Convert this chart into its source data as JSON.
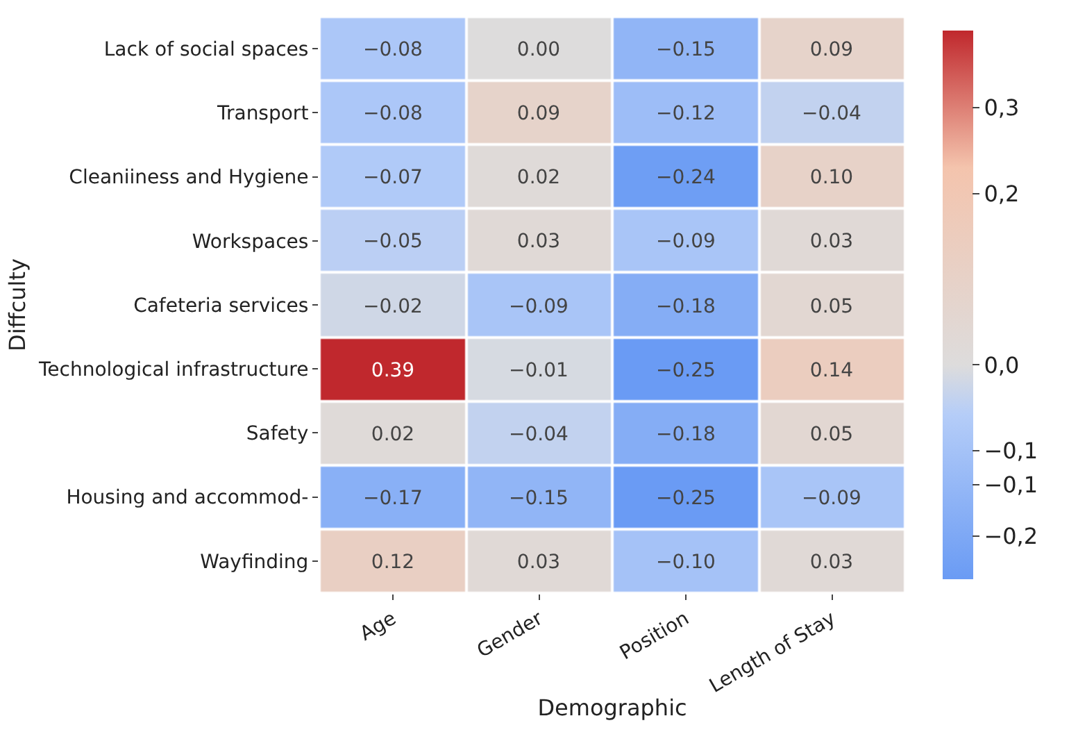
{
  "chart_data": {
    "type": "heatmap",
    "xlabel": "Demographic",
    "ylabel": "Diffculty",
    "categories": [
      "Age",
      "Gender",
      "Position",
      "Length of Stay"
    ],
    "y_categories": [
      "Lack of social spaces",
      "Transport",
      "Cleaniiness and Hygiene",
      "Workspaces",
      "Cafeteria services",
      "Technological infrastructure",
      "Safety",
      "Housing and accommod-",
      "Wayfinding"
    ],
    "cells": [
      [
        -0.08,
        0.0,
        -0.15,
        0.09
      ],
      [
        -0.08,
        0.09,
        -0.12,
        -0.04
      ],
      [
        -0.07,
        0.02,
        -0.24,
        0.1
      ],
      [
        -0.05,
        0.03,
        -0.09,
        0.03
      ],
      [
        -0.02,
        -0.09,
        -0.18,
        0.05
      ],
      [
        0.39,
        -0.01,
        -0.25,
        0.14
      ],
      [
        0.02,
        -0.04,
        -0.18,
        0.05
      ],
      [
        -0.17,
        -0.15,
        -0.25,
        -0.09
      ],
      [
        0.12,
        0.03,
        -0.1,
        0.03
      ]
    ],
    "cell_labels": [
      [
        "−0.08",
        "0.00",
        "−0.15",
        "0.09"
      ],
      [
        "−0.08",
        "0.09",
        "−0.12",
        "−0.04"
      ],
      [
        "−0.07",
        "0.02",
        "−0.24",
        "0.10"
      ],
      [
        "−0.05",
        "0.03",
        "−0.09",
        "0.03"
      ],
      [
        "−0.02",
        "−0.09",
        "−0.18",
        "0.05"
      ],
      [
        "0.39",
        "−0.01",
        "−0.25",
        "0.14"
      ],
      [
        "0.02",
        "−0.04",
        "−0.18",
        "0.05"
      ],
      [
        "−0.17",
        "−0.15",
        "−0.25",
        "−0.09"
      ],
      [
        "0.12",
        "0.03",
        "−0.10",
        "0.03"
      ]
    ],
    "clim": [
      -0.25,
      0.39
    ],
    "cticks": [
      {
        "value": 0.3,
        "label": "0,3"
      },
      {
        "value": 0.2,
        "label": "0,2"
      },
      {
        "value": 0.0,
        "label": "0,0"
      },
      {
        "value": -0.1,
        "label": "−0,1"
      },
      {
        "value": -0.14,
        "label": "−0,1"
      },
      {
        "value": -0.2,
        "label": "−0,2"
      }
    ]
  }
}
